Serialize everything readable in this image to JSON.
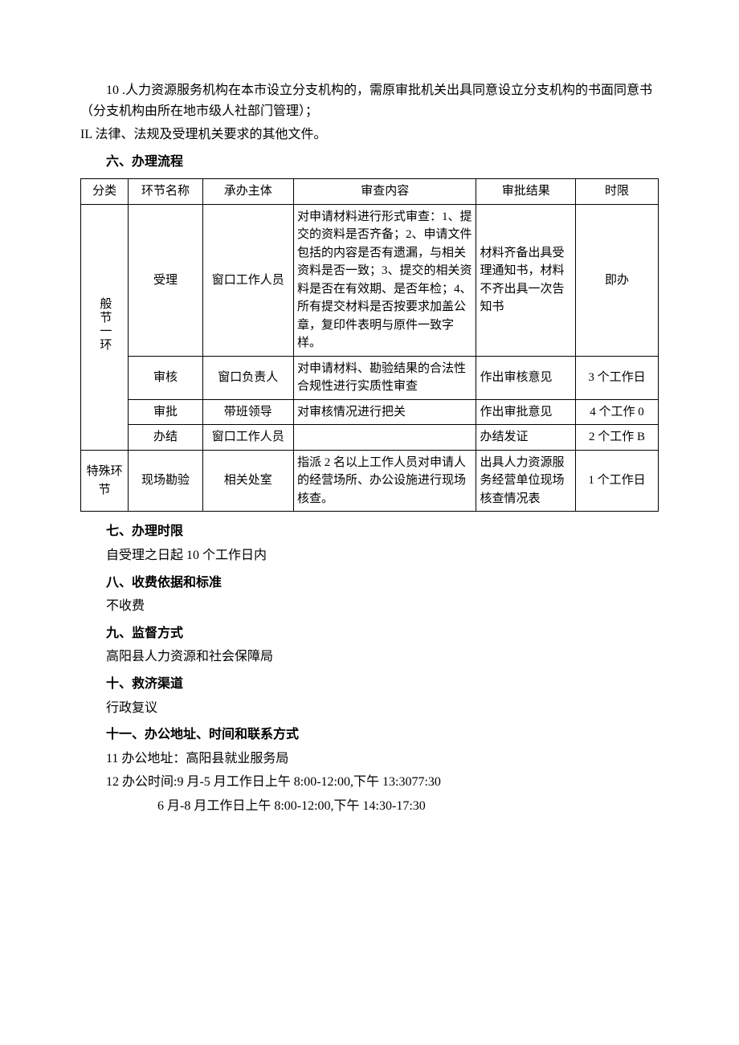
{
  "intro": {
    "p1": "10 .人力资源服务机构在本市设立分支机构的，需原审批机关出具同意设立分支机构的书面同意书（分支机构由所在地市级人社部门管理）；",
    "p2": "IL 法律、法规及受理机关要求的其他文件。"
  },
  "sec6": {
    "title": "六、办理流程",
    "headers": {
      "c1": "分类",
      "c2": "环节名称",
      "c3": "承办主体",
      "c4": "审查内容",
      "c5": "审批结果",
      "c6": "时限"
    },
    "group1_label": "般节一环",
    "rows": [
      {
        "step": "受理",
        "owner": "窗口工作人员",
        "check": "对申请材料进行形式审查：1、提交的资料是否齐备；2、申请文件包括的内容是否有遗漏，与相关资料是否一致；3、提交的相关资料是否在有效期、是否年检；4、所有提交材料是否按要求加盖公章，复印件表明与原件一致字样。",
        "result": "材料齐备出具受理通知书，材料不齐出具一次告知书",
        "time": "即办"
      },
      {
        "step": "审核",
        "owner": "窗口负责人",
        "check": "对申请材料、勘验结果的合法性合规性进行实质性审查",
        "result": "作出审核意见",
        "time": "3 个工作日"
      },
      {
        "step": "审批",
        "owner": "带班领导",
        "check": "对审核情况进行把关",
        "result": "作出审批意见",
        "time": "4 个工作 0"
      },
      {
        "step": "办结",
        "owner": "窗口工作人员",
        "check": "",
        "result": "办结发证",
        "time": "2 个工作 B"
      }
    ],
    "group2_label": "特殊环节",
    "row5": {
      "step": "现场勘验",
      "owner": "相关处室",
      "check": "指派 2 名以上工作人员对申请人的经营场所、办公设施进行现场核查。",
      "result": "出具人力资源服务经营单位现场核查情况表",
      "time": "1 个工作日"
    }
  },
  "sec7": {
    "title": "七、办理时限",
    "body": "自受理之日起 10 个工作日内"
  },
  "sec8": {
    "title": "八、收费依据和标准",
    "body": "不收费"
  },
  "sec9": {
    "title": "九、监督方式",
    "body": "高阳县人力资源和社会保障局"
  },
  "sec10": {
    "title": "十、救济渠道",
    "body": "行政复议"
  },
  "sec11": {
    "title": "十一、办公地址、时间和联系方式",
    "addr": "11 办公地址：高阳县就业服务局",
    "time1": "12 办公时间:9 月-5 月工作日上午 8:00-12:00,下午 13:3077:30",
    "time2": "6 月-8 月工作日上午 8:00-12:00,下午 14:30-17:30"
  }
}
